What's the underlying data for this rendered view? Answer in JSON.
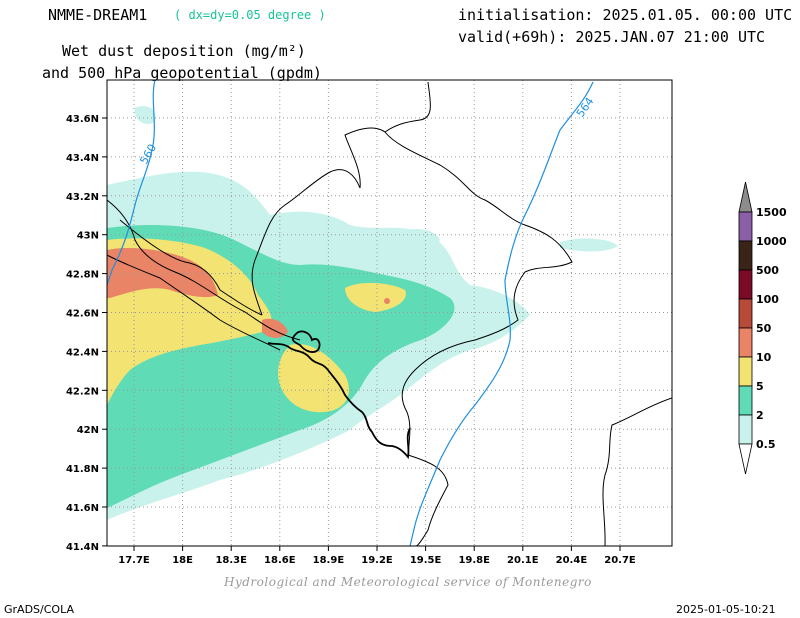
{
  "header": {
    "model": "NMME-DREAM1",
    "resolution": "( dx=dy=0.05 degree )",
    "title_line1": "Wet dust deposition (mg/m²)",
    "title_line2": "and 500 hPa geopotential (gpdm)",
    "initialisation": "initialisation: 2025.01.05. 00:00 UTC",
    "valid": "valid(+69h): 2025.JAN.07 21:00 UTC"
  },
  "map": {
    "x_ticks": [
      "17.7E",
      "18E",
      "18.3E",
      "18.6E",
      "18.9E",
      "19.2E",
      "19.5E",
      "19.8E",
      "20.1E",
      "20.4E",
      "20.7E"
    ],
    "y_ticks": [
      "43.6N",
      "43.4N",
      "43.2N",
      "43N",
      "42.8N",
      "42.6N",
      "42.4N",
      "42.2N",
      "42N",
      "41.8N",
      "41.6N",
      "41.4N"
    ],
    "contour_labels": [
      "560",
      "564"
    ],
    "contour_color": "#1f8fe0",
    "grid": true
  },
  "colorbar": {
    "levels": [
      {
        "label": "1500",
        "color": "#8c8c8c"
      },
      {
        "label": "1000",
        "color": "#8b5fa8"
      },
      {
        "label": "500",
        "color": "#3a2418"
      },
      {
        "label": "100",
        "color": "#7a0a25"
      },
      {
        "label": "50",
        "color": "#b84a3a"
      },
      {
        "label": "10",
        "color": "#e98466"
      },
      {
        "label": "5",
        "color": "#f3e373"
      },
      {
        "label": "2",
        "color": "#5fdcb6"
      },
      {
        "label": "0.5",
        "color": "#c9f2ec"
      }
    ],
    "bottom_color": "#ffffff"
  },
  "footer": {
    "credit": "Hydrological and Meteorological service of Montenegro",
    "software": "GrADS/COLA",
    "timestamp": "2025-01-05-10:21"
  }
}
